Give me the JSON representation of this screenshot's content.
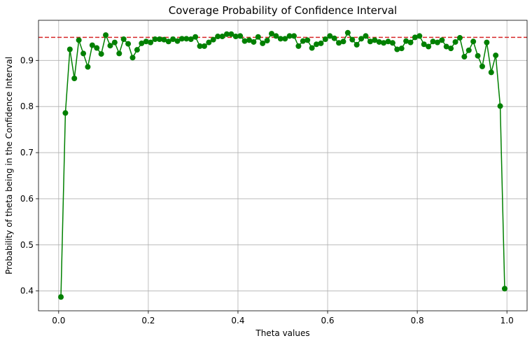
{
  "chart_data": {
    "type": "line",
    "title": "Coverage Probability of Confidence Interval",
    "xlabel": "Theta values",
    "ylabel": "Probability of theta being in the Confidence Interval",
    "xlim": [
      -0.045,
      1.045
    ],
    "ylim": [
      0.357,
      0.987
    ],
    "grid": true,
    "x_ticks": [
      0.0,
      0.2,
      0.4,
      0.6,
      0.8,
      1.0
    ],
    "x_tick_labels": [
      "0.0",
      "0.2",
      "0.4",
      "0.6",
      "0.8",
      "1.0"
    ],
    "y_ticks": [
      0.4,
      0.5,
      0.6,
      0.7,
      0.8,
      0.9
    ],
    "y_tick_labels": [
      "0.4",
      "0.5",
      "0.6",
      "0.7",
      "0.8",
      "0.9"
    ],
    "reference_line": {
      "y": 0.95,
      "color": "#d62728",
      "style": "dashed"
    },
    "series": [
      {
        "color": "#008000",
        "marker": "circle",
        "x": [
          0.005,
          0.015,
          0.025,
          0.035,
          0.045,
          0.055,
          0.065,
          0.075,
          0.085,
          0.095,
          0.105,
          0.115,
          0.125,
          0.135,
          0.145,
          0.155,
          0.165,
          0.175,
          0.185,
          0.195,
          0.205,
          0.215,
          0.225,
          0.235,
          0.245,
          0.255,
          0.265,
          0.275,
          0.285,
          0.295,
          0.305,
          0.315,
          0.325,
          0.335,
          0.345,
          0.355,
          0.365,
          0.375,
          0.385,
          0.395,
          0.405,
          0.415,
          0.425,
          0.435,
          0.445,
          0.455,
          0.465,
          0.475,
          0.485,
          0.495,
          0.505,
          0.515,
          0.525,
          0.535,
          0.545,
          0.555,
          0.565,
          0.575,
          0.585,
          0.595,
          0.605,
          0.615,
          0.625,
          0.635,
          0.645,
          0.655,
          0.665,
          0.675,
          0.685,
          0.695,
          0.705,
          0.715,
          0.725,
          0.735,
          0.745,
          0.755,
          0.765,
          0.775,
          0.785,
          0.795,
          0.805,
          0.815,
          0.825,
          0.835,
          0.845,
          0.855,
          0.865,
          0.875,
          0.885,
          0.895,
          0.905,
          0.915,
          0.925,
          0.935,
          0.945,
          0.955,
          0.965,
          0.975,
          0.985,
          0.995
        ],
        "y": [
          0.387,
          0.786,
          0.924,
          0.861,
          0.944,
          0.915,
          0.886,
          0.933,
          0.927,
          0.914,
          0.955,
          0.932,
          0.939,
          0.915,
          0.946,
          0.936,
          0.906,
          0.923,
          0.937,
          0.941,
          0.939,
          0.946,
          0.946,
          0.945,
          0.941,
          0.946,
          0.942,
          0.947,
          0.947,
          0.946,
          0.951,
          0.931,
          0.931,
          0.939,
          0.945,
          0.952,
          0.952,
          0.957,
          0.957,
          0.952,
          0.953,
          0.942,
          0.944,
          0.94,
          0.951,
          0.937,
          0.943,
          0.958,
          0.953,
          0.947,
          0.947,
          0.953,
          0.953,
          0.931,
          0.942,
          0.944,
          0.927,
          0.935,
          0.937,
          0.946,
          0.953,
          0.948,
          0.938,
          0.941,
          0.96,
          0.945,
          0.934,
          0.947,
          0.953,
          0.941,
          0.944,
          0.94,
          0.938,
          0.941,
          0.938,
          0.924,
          0.926,
          0.942,
          0.939,
          0.95,
          0.953,
          0.935,
          0.93,
          0.941,
          0.939,
          0.944,
          0.93,
          0.926,
          0.94,
          0.949,
          0.908,
          0.922,
          0.941,
          0.91,
          0.887,
          0.939,
          0.874,
          0.911,
          0.801,
          0.405
        ]
      }
    ]
  }
}
